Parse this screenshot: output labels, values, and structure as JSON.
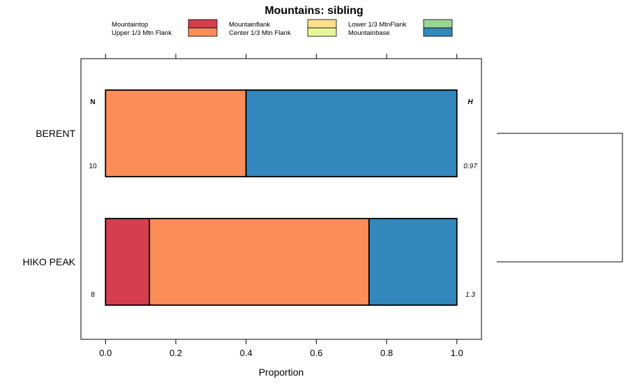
{
  "chart_data": {
    "type": "bar",
    "orientation": "horizontal",
    "stacked": true,
    "title": "Mountains: sibling",
    "xlabel": "Proportion",
    "xlim": [
      -0.07,
      1.07
    ],
    "xticks": [
      0,
      0.2,
      0.4,
      0.6,
      0.8,
      1
    ],
    "tick_labels": [
      "0.0",
      "0.2",
      "0.4",
      "0.6",
      "0.8",
      "1.0"
    ],
    "n_header": "N",
    "h_header": "H",
    "categories": [
      {
        "label": "BERENT",
        "n": "10",
        "h": "0.97"
      },
      {
        "label": "HIKO PEAK",
        "n": "8",
        "h": "1.3"
      }
    ],
    "series": [
      {
        "name": "Mountaintop",
        "color": "#d53e4f",
        "values": [
          0,
          0.125
        ]
      },
      {
        "name": "Upper 1/3 Mtn Flank",
        "color": "#fc8d59",
        "values": [
          0.4,
          0.625
        ]
      },
      {
        "name": "Mountainflank",
        "color": "#fee08b",
        "values": [
          0,
          0
        ]
      },
      {
        "name": "Center 1/3 Mtn Flank",
        "color": "#e6f598",
        "values": [
          0,
          0
        ]
      },
      {
        "name": "Lower 1/3 MtnFlank",
        "color": "#99d594",
        "values": [
          0,
          0
        ]
      },
      {
        "name": "Mountainbase",
        "color": "#3288bd",
        "values": [
          0.6,
          0.25
        ]
      }
    ],
    "dendrogram": {
      "merge_height": 1,
      "leaves": [
        "BERENT",
        "HIKO PEAK"
      ]
    },
    "legend_position": "top",
    "grid": false
  }
}
